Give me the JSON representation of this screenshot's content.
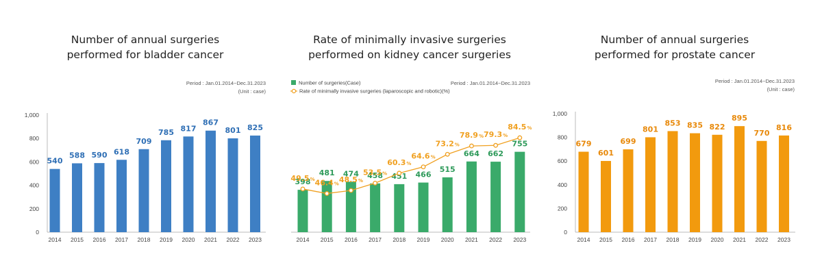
{
  "chart_data": [
    {
      "type": "bar",
      "title_lines": [
        "Number of annual surgeries",
        "performed for bladder cancer"
      ],
      "period": "Period : Jan.01.2014~Dec.31.2023",
      "unit": "(Unit : case)",
      "categories": [
        "2014",
        "2015",
        "2016",
        "2017",
        "2018",
        "2019",
        "2020",
        "2021",
        "2022",
        "2023"
      ],
      "values": [
        540,
        588,
        590,
        618,
        709,
        785,
        817,
        867,
        801,
        825
      ],
      "ylim": [
        0,
        1000
      ],
      "yticks": [
        "0",
        "200",
        "400",
        "600",
        "800",
        "1,000"
      ],
      "bar_color": "#3e7fc4",
      "label_color": "#2f6fb5"
    },
    {
      "type": "bar+line",
      "title_lines": [
        "Rate of minimally invasive surgeries",
        "performed on kidney cancer surgeries"
      ],
      "period": "Period : Jan.01.2014~Dec.31.2023",
      "legend": [
        "Number of surgeries(Case)",
        "Rate of minimally invasive surgeries (laparoscopic and robotic)(%)"
      ],
      "categories": [
        "2014",
        "2015",
        "2016",
        "2017",
        "2018",
        "2019",
        "2020",
        "2021",
        "2022",
        "2023"
      ],
      "series": [
        {
          "name": "Number of surgeries(Case)",
          "values": [
            398,
            481,
            474,
            458,
            451,
            466,
            515,
            664,
            662,
            755
          ]
        },
        {
          "name": "Rate of minimally invasive surgeries (laparoscopic and robotic)(%)",
          "values": [
            49.5,
            46.4,
            48.5,
            53.5,
            60.3,
            64.6,
            73.2,
            78.9,
            79.3,
            84.5
          ]
        }
      ],
      "rate_labels": [
        "49.5",
        "46.4",
        "48.5",
        "53.5",
        "60.3",
        "64.6",
        "73.2",
        "78.9",
        "79.3",
        "84.5"
      ],
      "percent_sign": "%",
      "bar_ylim": [
        0,
        1100
      ],
      "rate_ylim": [
        20,
        100
      ],
      "bar_color": "#3aaa6a",
      "label_color": "#2e9a5a",
      "line_color": "#f0a020"
    },
    {
      "type": "bar",
      "title_lines": [
        "Number of annual surgeries",
        "performed for prostate cancer"
      ],
      "period": "Period : Jan.01.2014~Dec.31.2023",
      "unit": "(Unit : case)",
      "categories": [
        "2014",
        "2015",
        "2016",
        "2017",
        "2018",
        "2019",
        "2020",
        "2021",
        "2022",
        "2023"
      ],
      "values": [
        679,
        601,
        699,
        801,
        853,
        835,
        822,
        895,
        770,
        816
      ],
      "ylim": [
        0,
        1000
      ],
      "yticks": [
        "0",
        "200",
        "400",
        "600",
        "800",
        "1,000"
      ],
      "bar_color": "#f29a0e",
      "label_color": "#e8890a"
    }
  ]
}
